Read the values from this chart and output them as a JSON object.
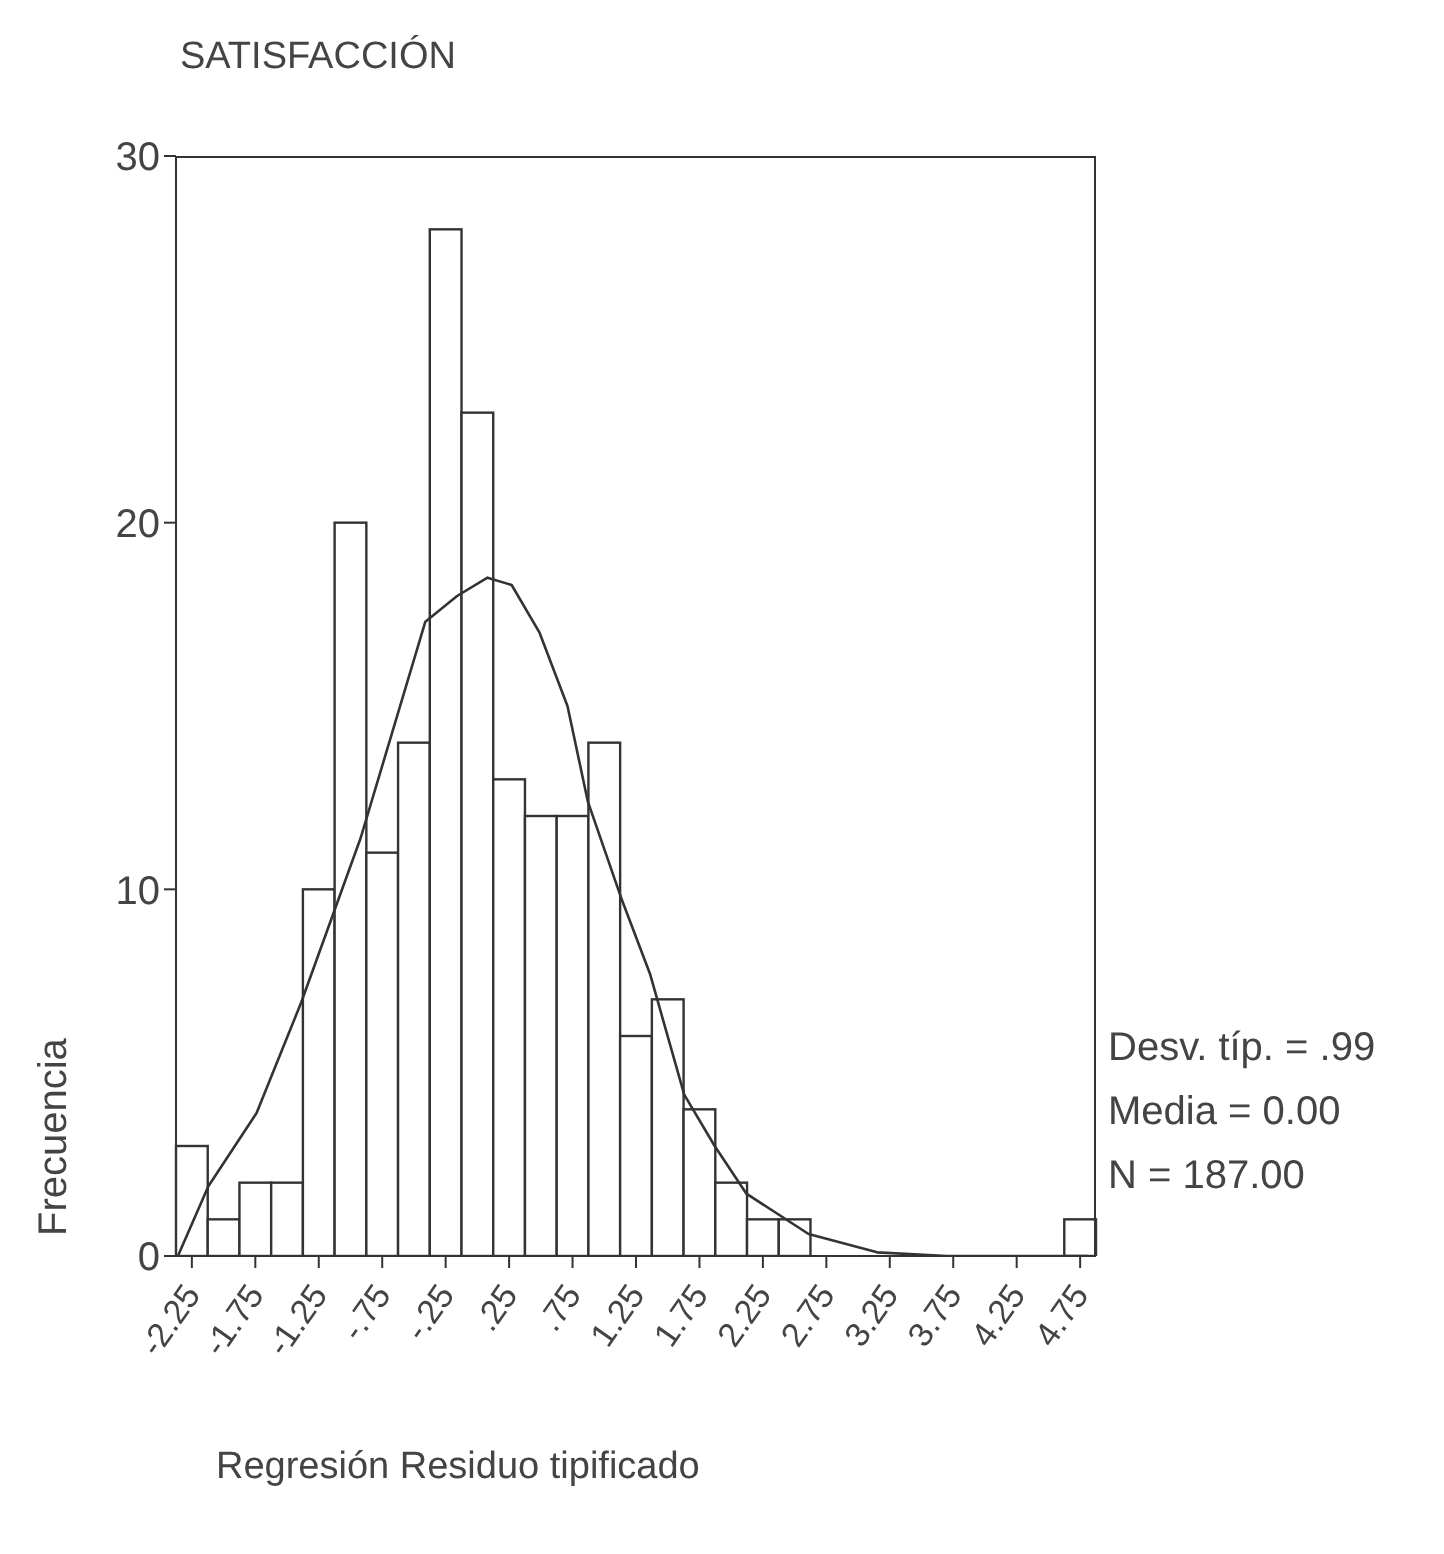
{
  "chart_data": {
    "type": "histogram",
    "title": "SATISFACCIÓN",
    "xlabel": "Regresión Residuo tipificado",
    "ylabel": "Frecuencia",
    "bins": [
      -2.375,
      -2.125,
      -1.875,
      -1.625,
      -1.375,
      -1.125,
      -0.875,
      -0.625,
      -0.375,
      -0.125,
      0.125,
      0.375,
      0.625,
      0.875,
      1.125,
      1.375,
      1.625,
      1.875,
      2.125,
      2.375,
      2.625,
      2.875,
      3.125,
      3.375,
      3.625,
      3.875,
      4.125,
      4.375,
      4.625,
      4.875
    ],
    "values": [
      3,
      1,
      2,
      2,
      10,
      20,
      11,
      14,
      28,
      23,
      13,
      12,
      12,
      14,
      6,
      7,
      4,
      2,
      1,
      1,
      0,
      0,
      0,
      0,
      0,
      0,
      0,
      0,
      1
    ],
    "color": "#ffffff",
    "series": [
      {
        "type": "line",
        "color": "#333333",
        "x": [
          -2.36,
          -2.12,
          -1.74,
          -1.39,
          -0.92,
          -0.41,
          -0.16,
          0.08,
          0.27,
          0.49,
          0.71,
          0.87,
          1.14,
          1.36,
          1.63,
          1.87,
          2.12,
          2.61,
          3.15,
          3.7,
          4.81
        ],
        "values": [
          0,
          1.9,
          3.9,
          6.9,
          11.4,
          17.3,
          18,
          18.5,
          18.3,
          17,
          15,
          12.4,
          9.7,
          7.7,
          4.4,
          3,
          1.7,
          0.6,
          0.1,
          0,
          0
        ]
      }
    ],
    "xlim": [
      -2.375,
      4.875
    ],
    "ylim": [
      0,
      30
    ],
    "yticks": [
      0,
      10,
      20,
      30
    ],
    "xticks": [
      {
        "value": -2.25,
        "label": "-2.25"
      },
      {
        "value": -1.75,
        "label": "-1.75"
      },
      {
        "value": -1.25,
        "label": "-1.25"
      },
      {
        "value": -0.75,
        "label": "-.75"
      },
      {
        "value": -0.25,
        "label": "-.25"
      },
      {
        "value": 0.25,
        "label": ".25"
      },
      {
        "value": 0.75,
        "label": ".75"
      },
      {
        "value": 1.25,
        "label": "1.25"
      },
      {
        "value": 1.75,
        "label": "1.75"
      },
      {
        "value": 2.25,
        "label": "2.25"
      },
      {
        "value": 2.75,
        "label": "2.75"
      },
      {
        "value": 3.25,
        "label": "3.25"
      },
      {
        "value": 3.75,
        "label": "3.75"
      },
      {
        "value": 4.25,
        "label": "4.25"
      },
      {
        "value": 4.75,
        "label": "4.75"
      }
    ],
    "annotations": [
      "Desv. típ. = .99",
      "Media = 0.00",
      "N = 187.00"
    ]
  }
}
